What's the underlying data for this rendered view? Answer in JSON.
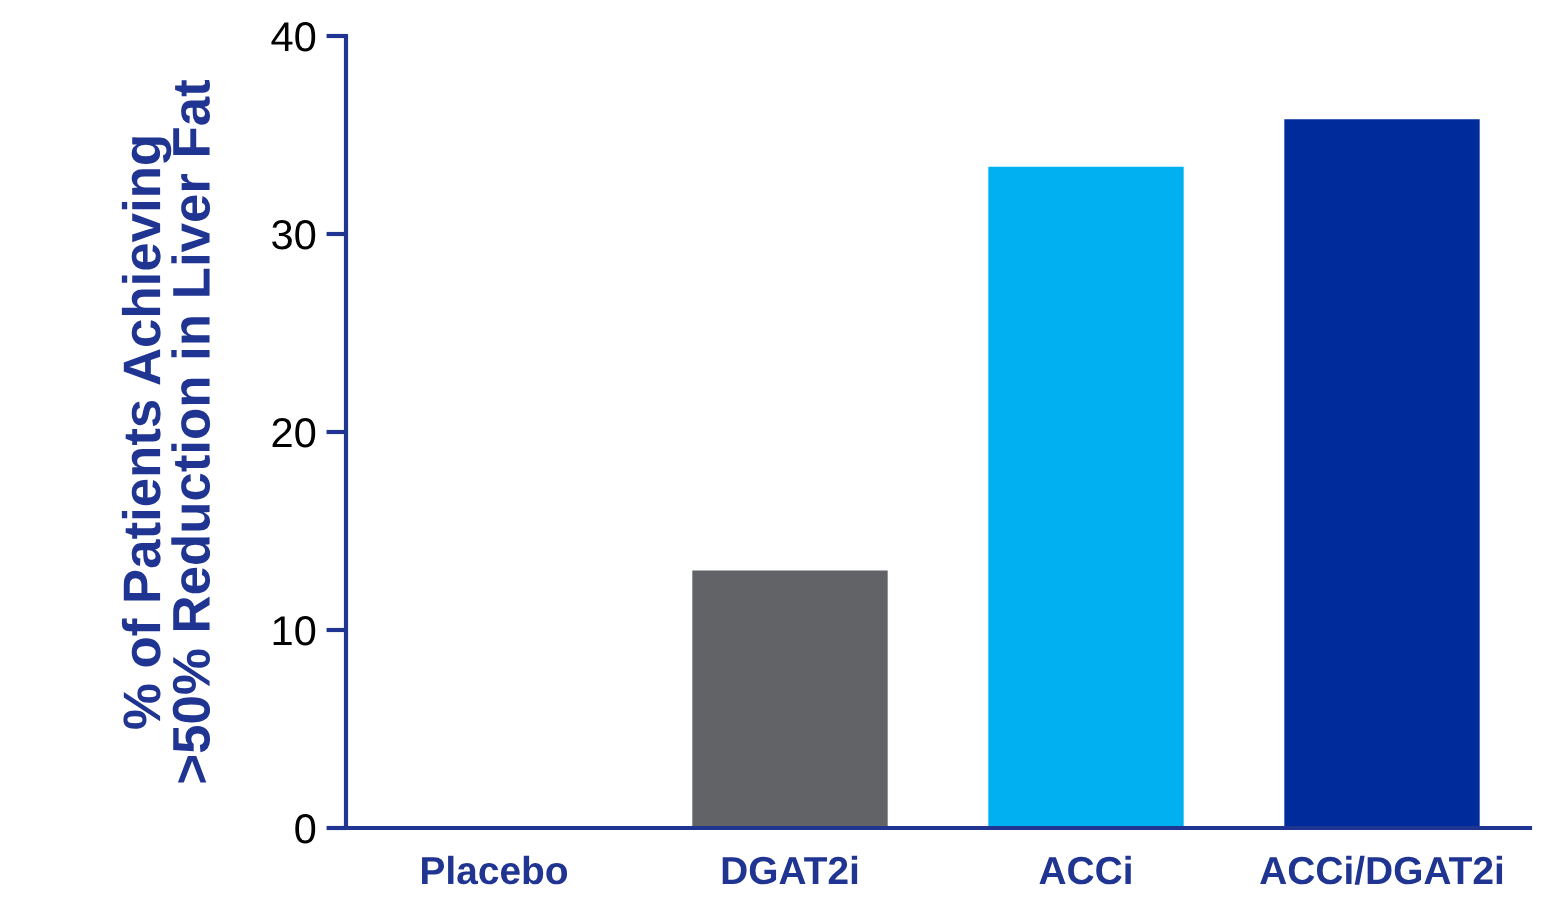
{
  "chart_data": {
    "type": "bar",
    "ylabel": "% of Patients Achieving\n>50% Reduction in Liver Fat",
    "categories": [
      "Placebo",
      "DGAT2i",
      "ACCi",
      "ACCi/DGAT2i"
    ],
    "values": [
      0,
      13.0,
      33.4,
      35.8
    ],
    "colors": [
      "#626366",
      "#626366",
      "#00b0f0",
      "#002b9a"
    ],
    "ylim": [
      0,
      40
    ],
    "yticks": [
      0,
      10,
      20,
      30,
      40
    ],
    "grid": false,
    "legend": false
  }
}
